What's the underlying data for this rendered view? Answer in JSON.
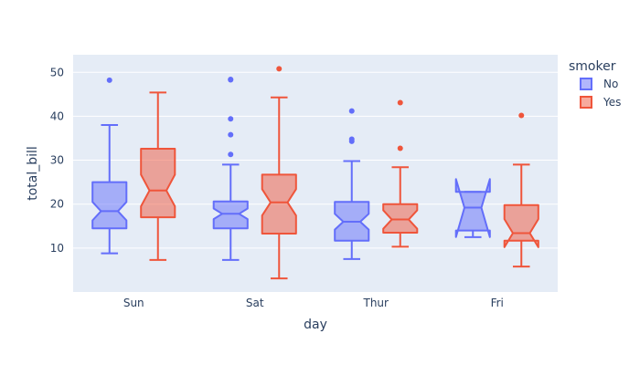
{
  "chart_data": {
    "type": "box",
    "xlabel": "day",
    "ylabel": "total_bill",
    "categories": [
      "Sun",
      "Sat",
      "Thur",
      "Fri"
    ],
    "ylim": [
      0,
      54
    ],
    "yticks": [
      10,
      20,
      30,
      40,
      50
    ],
    "notched": true,
    "legend": {
      "title": "smoker",
      "position": "right"
    },
    "series": [
      {
        "name": "No",
        "color": "#636efa",
        "boxes": [
          {
            "category": "Sun",
            "min": 8.8,
            "q1": 14.5,
            "median": 18.4,
            "q3": 25.0,
            "max": 38.0,
            "notch_low": 16.3,
            "notch_high": 20.5,
            "outliers": [
              48.2
            ]
          },
          {
            "category": "Sat",
            "min": 7.3,
            "q1": 14.5,
            "median": 17.8,
            "q3": 20.6,
            "max": 29.0,
            "notch_low": 16.6,
            "notch_high": 19.0,
            "outliers": [
              31.3,
              35.8,
              39.4,
              48.3,
              48.4
            ]
          },
          {
            "category": "Thur",
            "min": 7.5,
            "q1": 11.7,
            "median": 16.0,
            "q3": 20.5,
            "max": 29.8,
            "notch_low": 14.2,
            "notch_high": 17.8,
            "outliers": [
              34.3,
              34.8,
              41.2
            ]
          },
          {
            "category": "Fri",
            "min": 12.5,
            "q1": 14.0,
            "median": 19.2,
            "q3": 22.8,
            "max": 22.8,
            "notch_low": 12.5,
            "notch_high": 25.7,
            "outliers": []
          }
        ]
      },
      {
        "name": "Yes",
        "color": "#ef553b",
        "boxes": [
          {
            "category": "Sun",
            "min": 7.3,
            "q1": 17.0,
            "median": 23.1,
            "q3": 32.6,
            "max": 45.4,
            "notch_low": 19.5,
            "notch_high": 26.7,
            "outliers": []
          },
          {
            "category": "Sat",
            "min": 3.1,
            "q1": 13.3,
            "median": 20.4,
            "q3": 26.7,
            "max": 44.3,
            "notch_low": 17.4,
            "notch_high": 23.4,
            "outliers": [
              50.8
            ]
          },
          {
            "category": "Thur",
            "min": 10.3,
            "q1": 13.5,
            "median": 16.5,
            "q3": 20.0,
            "max": 28.4,
            "notch_low": 14.4,
            "notch_high": 18.6,
            "outliers": [
              32.7,
              43.1
            ]
          },
          {
            "category": "Fri",
            "min": 5.8,
            "q1": 11.7,
            "median": 13.4,
            "q3": 19.8,
            "max": 29.0,
            "notch_low": 10.2,
            "notch_high": 16.6,
            "outliers": [
              40.2
            ]
          }
        ]
      }
    ]
  }
}
